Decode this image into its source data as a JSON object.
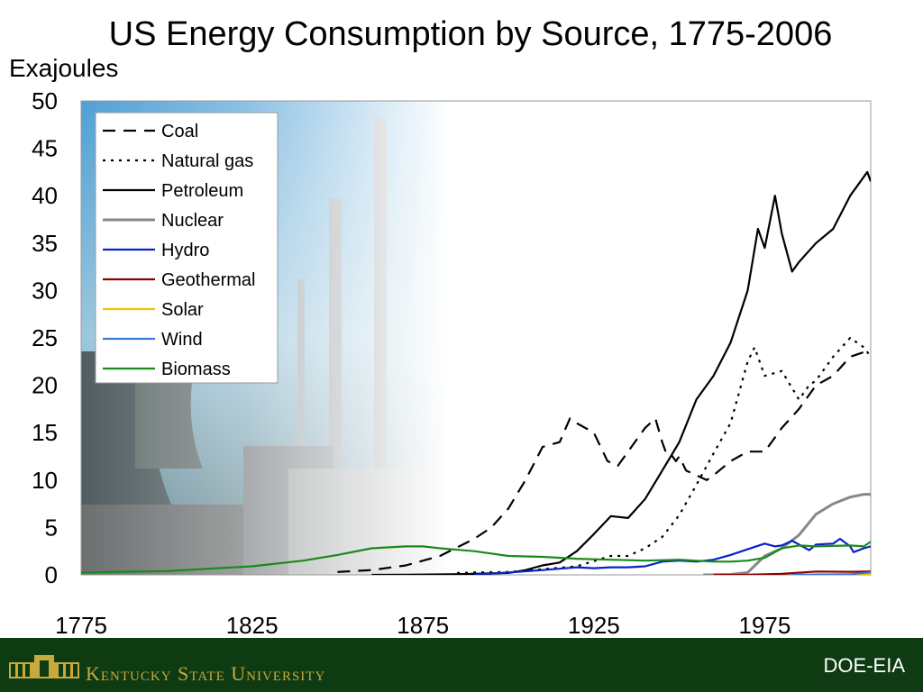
{
  "title": "US Energy Consumption by Source, 1775-2006",
  "unit_label": "Exajoules",
  "footer": {
    "university": "Kentucky State University",
    "source": "DOE-EIA"
  },
  "colors": {
    "footer_bg": "#0e3b12",
    "footer_text": "#c8a93e"
  },
  "chart_data": {
    "type": "line",
    "ylabel": "Exajoules",
    "xlim": [
      1775,
      2006
    ],
    "ylim": [
      0,
      50
    ],
    "yticks": [
      0,
      5,
      10,
      15,
      20,
      25,
      30,
      35,
      40,
      45,
      50
    ],
    "xticks": [
      1775,
      1825,
      1875,
      1925,
      1975
    ],
    "legend_position": "top-left",
    "background": "industrial photo (power plant with cooling towers and smokestacks) fading to white",
    "series": [
      {
        "name": "Coal",
        "color": "#000000",
        "dash": "dashed",
        "x": [
          1850,
          1860,
          1870,
          1880,
          1890,
          1895,
          1900,
          1905,
          1910,
          1915,
          1918,
          1920,
          1925,
          1929,
          1932,
          1935,
          1940,
          1943,
          1945,
          1946,
          1947,
          1949,
          1950,
          1952,
          1955,
          1958,
          1960,
          1965,
          1970,
          1975,
          1980,
          1985,
          1990,
          1995,
          2000,
          2004,
          2006
        ],
        "y": [
          0.3,
          0.5,
          1.0,
          2.0,
          3.8,
          5.0,
          7.0,
          10.0,
          13.5,
          14.0,
          16.5,
          16.0,
          15.0,
          12.0,
          11.5,
          13.0,
          15.5,
          16.5,
          14.0,
          13.0,
          13.0,
          12.0,
          12.5,
          11.0,
          10.5,
          10.0,
          10.5,
          12.0,
          13.0,
          13.0,
          15.5,
          17.5,
          20.0,
          21.0,
          23.0,
          23.5,
          23.5
        ]
      },
      {
        "name": "Natural gas",
        "color": "#000000",
        "dash": "dotted",
        "x": [
          1885,
          1890,
          1900,
          1910,
          1920,
          1930,
          1935,
          1940,
          1945,
          1950,
          1955,
          1960,
          1965,
          1970,
          1972,
          1975,
          1980,
          1985,
          1988,
          1990,
          1995,
          2000,
          2004,
          2006
        ],
        "y": [
          0.2,
          0.25,
          0.3,
          0.6,
          0.9,
          2.0,
          2.0,
          2.8,
          4.0,
          6.3,
          9.5,
          12.8,
          16.0,
          22.5,
          24.0,
          21.0,
          21.5,
          18.5,
          20.0,
          20.5,
          23.0,
          25.0,
          24.0,
          23.0
        ]
      },
      {
        "name": "Petroleum",
        "color": "#000000",
        "dash": "solid",
        "x": [
          1860,
          1870,
          1880,
          1890,
          1900,
          1905,
          1910,
          1915,
          1920,
          1925,
          1930,
          1935,
          1940,
          1945,
          1950,
          1955,
          1960,
          1965,
          1970,
          1973,
          1975,
          1978,
          1980,
          1983,
          1985,
          1990,
          1995,
          2000,
          2004,
          2005,
          2006
        ],
        "y": [
          0.0,
          0.02,
          0.05,
          0.1,
          0.2,
          0.5,
          1.0,
          1.3,
          2.5,
          4.3,
          6.2,
          6.0,
          8.0,
          11.0,
          14.0,
          18.5,
          21.0,
          24.5,
          30.0,
          36.5,
          34.5,
          40.0,
          36.0,
          32.0,
          33.0,
          35.0,
          36.5,
          40.0,
          42.0,
          42.5,
          41.5
        ]
      },
      {
        "name": "Nuclear",
        "color": "#888888",
        "dash": "solid",
        "x": [
          1957,
          1960,
          1965,
          1970,
          1975,
          1980,
          1985,
          1990,
          1995,
          2000,
          2004,
          2006
        ],
        "y": [
          0.0,
          0.01,
          0.05,
          0.25,
          2.0,
          2.8,
          4.2,
          6.4,
          7.5,
          8.2,
          8.5,
          8.5
        ]
      },
      {
        "name": "Hydro",
        "color": "#0a22c8",
        "dash": "solid",
        "x": [
          1890,
          1900,
          1910,
          1920,
          1925,
          1930,
          1935,
          1940,
          1945,
          1950,
          1955,
          1960,
          1965,
          1970,
          1975,
          1978,
          1980,
          1983,
          1985,
          1988,
          1990,
          1995,
          1997,
          2000,
          2001,
          2004,
          2006
        ],
        "y": [
          0.02,
          0.25,
          0.5,
          0.8,
          0.7,
          0.8,
          0.8,
          0.9,
          1.4,
          1.5,
          1.4,
          1.6,
          2.1,
          2.7,
          3.3,
          3.0,
          3.1,
          3.6,
          3.2,
          2.6,
          3.2,
          3.3,
          3.8,
          3.0,
          2.4,
          2.8,
          3.0
        ]
      },
      {
        "name": "Geothermal",
        "color": "#8b0000",
        "dash": "solid",
        "x": [
          1960,
          1970,
          1980,
          1990,
          2000,
          2006
        ],
        "y": [
          0.0,
          0.01,
          0.1,
          0.35,
          0.32,
          0.36
        ]
      },
      {
        "name": "Solar",
        "color": "#f2c200",
        "dash": "solid",
        "x": [
          1984,
          1990,
          2000,
          2006
        ],
        "y": [
          0.0,
          0.06,
          0.07,
          0.07
        ]
      },
      {
        "name": "Wind",
        "color": "#3a78d8",
        "dash": "solid",
        "x": [
          1983,
          1990,
          2000,
          2006
        ],
        "y": [
          0.0,
          0.03,
          0.06,
          0.27
        ]
      },
      {
        "name": "Biomass",
        "color": "#1a8a1a",
        "dash": "solid",
        "x": [
          1775,
          1800,
          1825,
          1840,
          1850,
          1860,
          1870,
          1875,
          1880,
          1890,
          1900,
          1910,
          1920,
          1930,
          1940,
          1950,
          1960,
          1965,
          1970,
          1975,
          1980,
          1985,
          1990,
          2000,
          2004,
          2006
        ],
        "y": [
          0.25,
          0.4,
          0.9,
          1.5,
          2.1,
          2.8,
          3.0,
          3.0,
          2.8,
          2.5,
          2.0,
          1.9,
          1.7,
          1.6,
          1.5,
          1.6,
          1.4,
          1.4,
          1.5,
          1.8,
          2.8,
          3.1,
          3.0,
          3.1,
          3.0,
          3.5
        ]
      }
    ]
  }
}
